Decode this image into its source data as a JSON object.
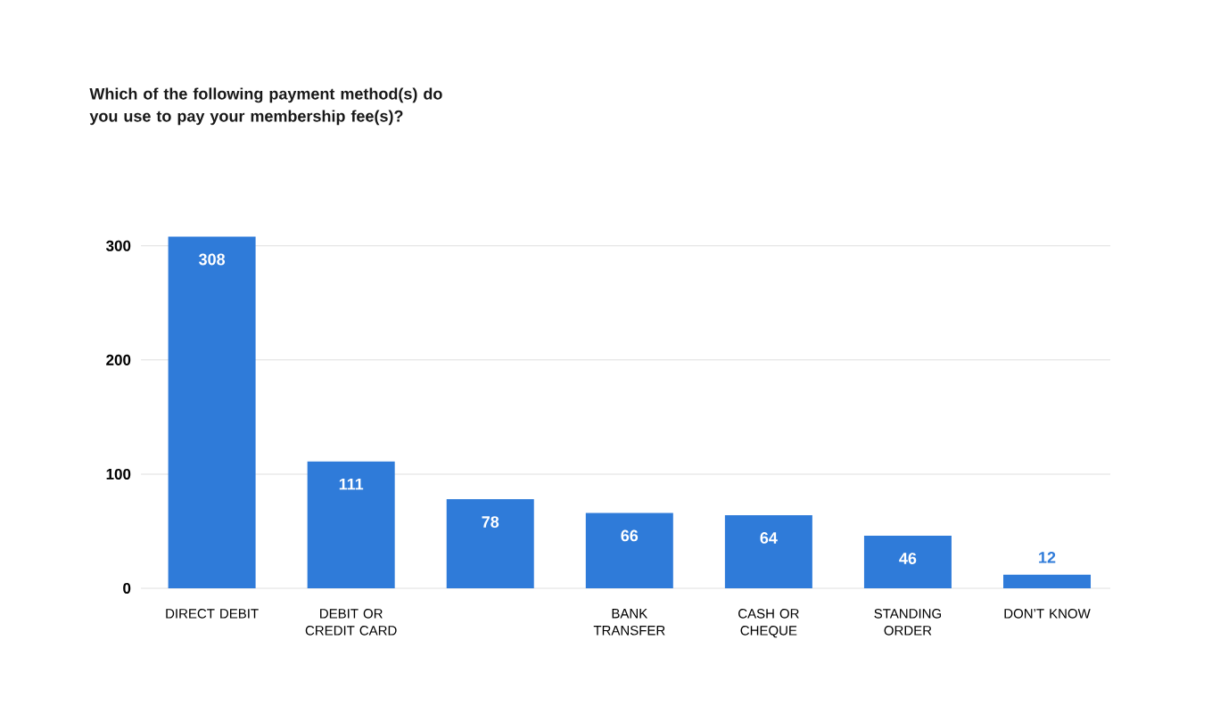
{
  "chart_data": {
    "type": "bar",
    "title": "Which of the following payment method(s) do you use to pay your membership fee(s)?",
    "categories": [
      "DIRECT DEBIT",
      "DEBIT OR CREDIT CARD",
      null,
      "BANK TRANSFER",
      "CASH OR CHEQUE",
      "STANDING ORDER",
      "DON’T KNOW"
    ],
    "values": [
      308,
      111,
      78,
      66,
      64,
      46,
      12
    ],
    "color": "#2f7bd9",
    "ylim": [
      0,
      310
    ],
    "yticks": [
      0,
      100,
      200,
      300
    ],
    "grid": "y",
    "data_labels": true
  }
}
